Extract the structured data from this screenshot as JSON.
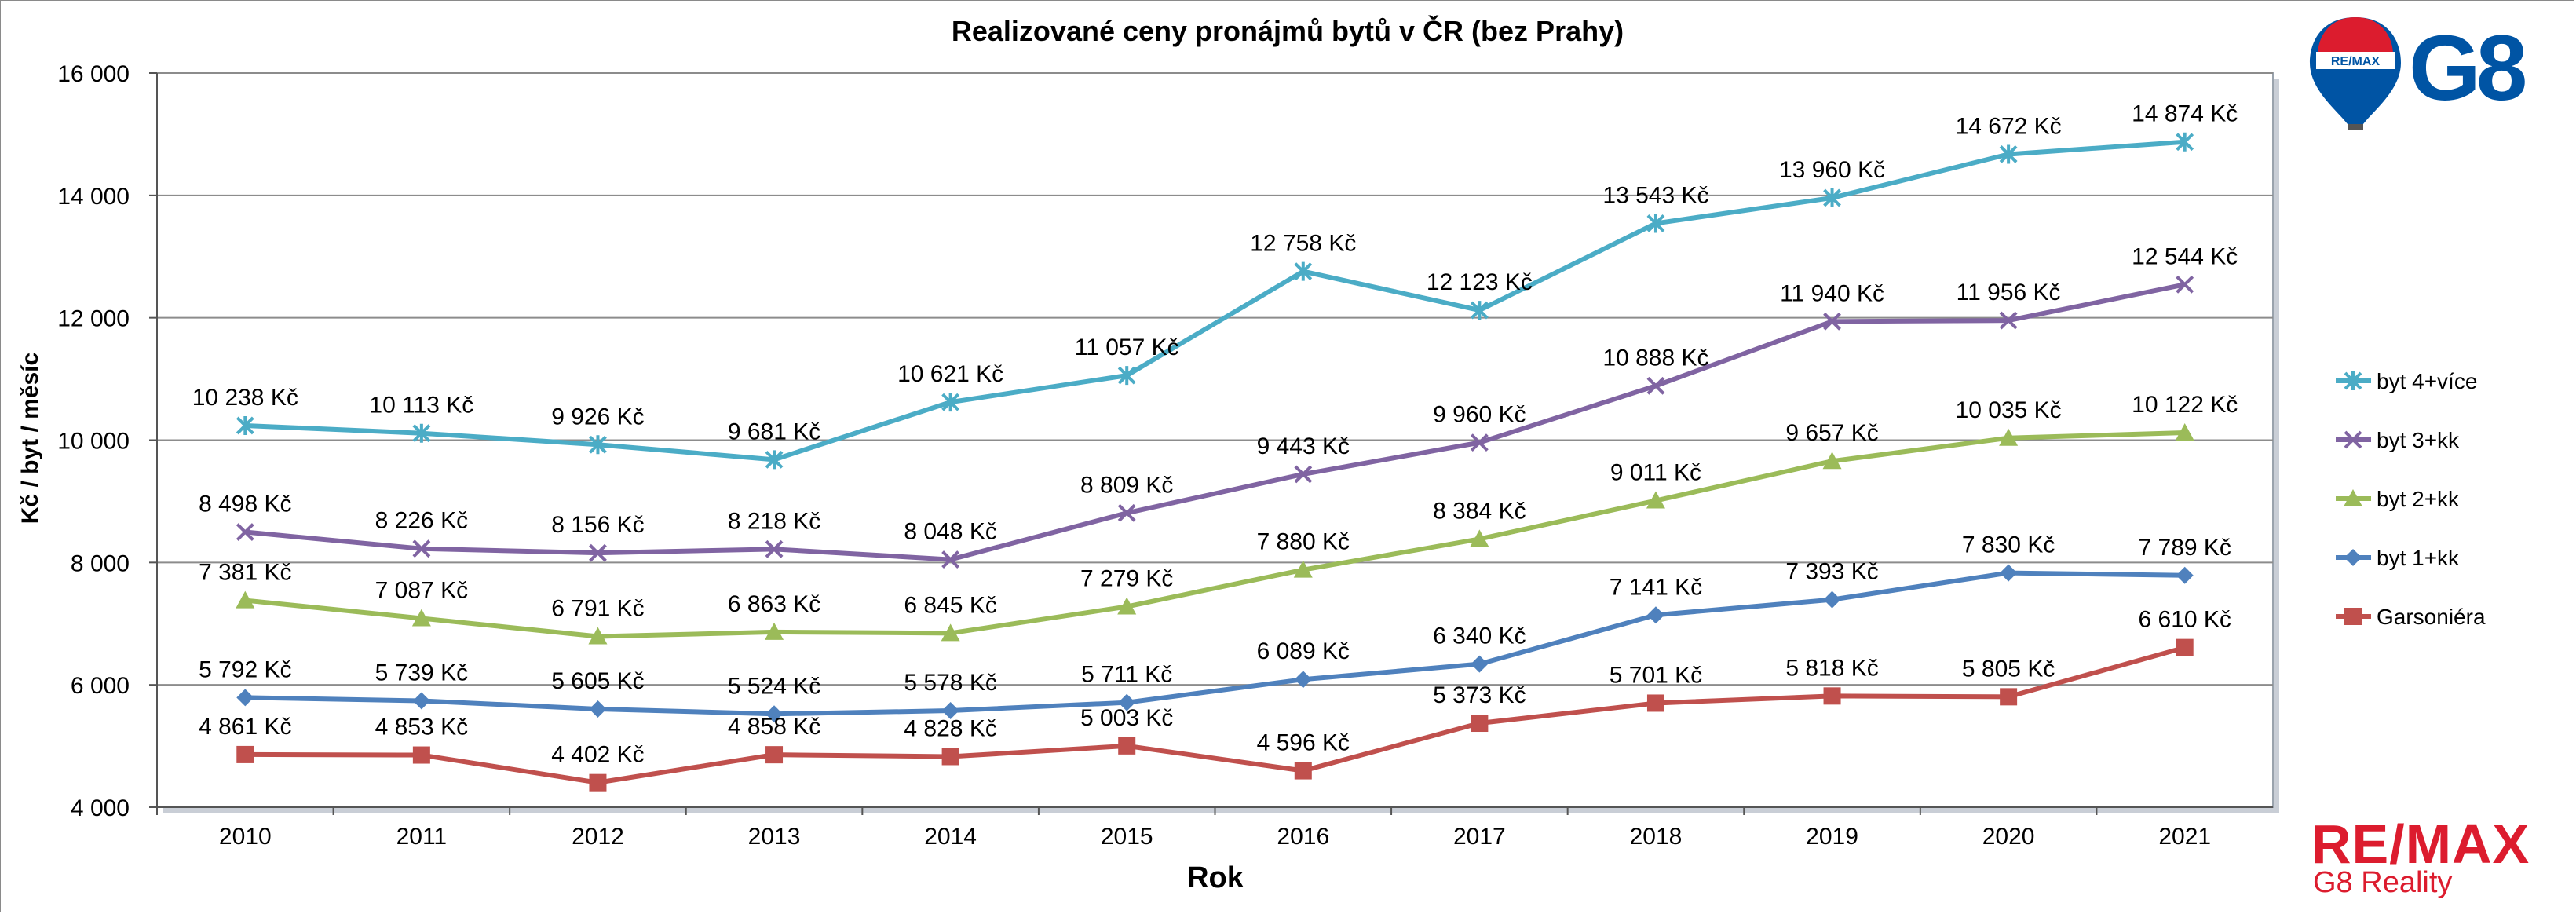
{
  "chart_data": {
    "type": "line",
    "title": "Realizované ceny pronájmů bytů v ČR (bez Prahy)",
    "xlabel": "Rok",
    "ylabel": "Kč / byt / měsíc",
    "categories": [
      "2010",
      "2011",
      "2012",
      "2013",
      "2014",
      "2015",
      "2016",
      "2017",
      "2018",
      "2019",
      "2020",
      "2021"
    ],
    "ylim": [
      4000,
      16000
    ],
    "yticks": [
      4000,
      6000,
      8000,
      10000,
      12000,
      14000,
      16000
    ],
    "ytick_labels": [
      "4 000",
      "6 000",
      "8 000",
      "10 000",
      "12 000",
      "14 000",
      "16 000"
    ],
    "grid": true,
    "legend_position": "right",
    "series": [
      {
        "name": "byt 4+více",
        "color": "#4bacc6",
        "marker": "asterisk",
        "values": [
          10238,
          10113,
          9926,
          9681,
          10621,
          11057,
          12758,
          12123,
          13543,
          13960,
          14672,
          14874
        ],
        "labels": [
          "10 238 Kč",
          "10 113 Kč",
          "9 926 Kč",
          "9 681 Kč",
          "10 621 Kč",
          "11 057 Kč",
          "12 758 Kč",
          "12 123 Kč",
          "13 543 Kč",
          "13 960 Kč",
          "14 672 Kč",
          "14 874 Kč"
        ]
      },
      {
        "name": "byt 3+kk",
        "color": "#8064a2",
        "marker": "x",
        "values": [
          8498,
          8226,
          8156,
          8218,
          8048,
          8809,
          9443,
          9960,
          10888,
          11940,
          11956,
          12544
        ],
        "labels": [
          "8 498 Kč",
          "8 226 Kč",
          "8 156 Kč",
          "8 218 Kč",
          "8 048 Kč",
          "8 809 Kč",
          "9 443 Kč",
          "9 960 Kč",
          "10 888 Kč",
          "11 940 Kč",
          "11 956 Kč",
          "12 544 Kč"
        ]
      },
      {
        "name": "byt 2+kk",
        "color": "#9bbb59",
        "marker": "triangle",
        "values": [
          7381,
          7087,
          6791,
          6863,
          6845,
          7279,
          7880,
          8384,
          9011,
          9657,
          10035,
          10122
        ],
        "labels": [
          "7 381 Kč",
          "7 087 Kč",
          "6 791 Kč",
          "6 863 Kč",
          "6 845 Kč",
          "7 279 Kč",
          "7 880 Kč",
          "8 384 Kč",
          "9 011 Kč",
          "9 657 Kč",
          "10 035 Kč",
          "10 122 Kč"
        ]
      },
      {
        "name": "byt 1+kk",
        "color": "#4f81bd",
        "marker": "diamond",
        "values": [
          5792,
          5739,
          5605,
          5524,
          5578,
          5711,
          6089,
          6340,
          7141,
          7393,
          7830,
          7789
        ],
        "labels": [
          "5 792 Kč",
          "5 739 Kč",
          "5 605 Kč",
          "5 524 Kč",
          "5 578 Kč",
          "5 711 Kč",
          "6 089 Kč",
          "6 340 Kč",
          "7 141 Kč",
          "7 393 Kč",
          "7 830 Kč",
          "7 789 Kč"
        ]
      },
      {
        "name": "Garsoniéra",
        "color": "#c0504d",
        "marker": "square",
        "values": [
          4861,
          4853,
          4402,
          4858,
          4828,
          5003,
          4596,
          5373,
          5701,
          5818,
          5805,
          6610
        ],
        "labels": [
          "4 861 Kč",
          "4 853 Kč",
          "4 402 Kč",
          "4 858 Kč",
          "4 828 Kč",
          "5 003 Kč",
          "4 596 Kč",
          "5 373 Kč",
          "5 701 Kč",
          "5 818 Kč",
          "5 805 Kč",
          "6 610 Kč"
        ]
      }
    ]
  },
  "branding": {
    "top_logo_text": "G8",
    "balloon_text": "RE/MAX",
    "bottom_logo_remax": "RE/MAX",
    "bottom_logo_sub": "G8 Reality"
  }
}
